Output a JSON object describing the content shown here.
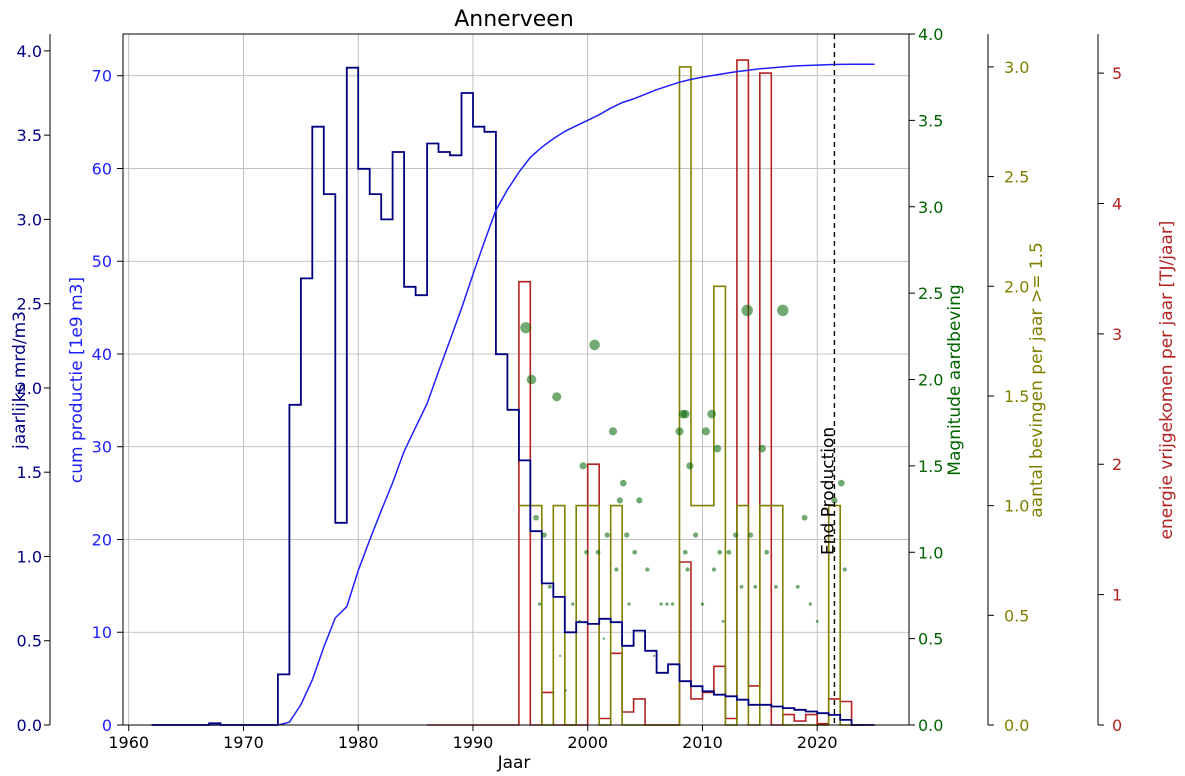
{
  "chart_data": {
    "type": "line",
    "title": "Annerveen",
    "xlabel": "Jaar",
    "xlim": [
      1959.5,
      2028
    ],
    "x_ticks": [
      "1960",
      "1970",
      "1980",
      "1990",
      "2000",
      "2010",
      "2020"
    ],
    "grid": true,
    "colors": {
      "annual": "#000080",
      "cumulative": "#1f1fff",
      "magnitude": "#006400",
      "counts": "#808000",
      "energy": "#b22222"
    },
    "axes": {
      "annual": {
        "label": "jaarlijks mrd/m3",
        "ylim": [
          0,
          4.1
        ],
        "ticks": [
          "0.0",
          "0.5",
          "1.0",
          "1.5",
          "2.0",
          "2.5",
          "3.0",
          "3.5",
          "4.0"
        ]
      },
      "cumulative": {
        "label": "cum productie [1e9 m3]",
        "ylim": [
          0,
          74.5
        ],
        "ticks": [
          "0",
          "10",
          "20",
          "30",
          "40",
          "50",
          "60",
          "70"
        ]
      },
      "magnitude": {
        "label": "Magnitude aardbeving",
        "ylim": [
          0,
          4.0
        ],
        "ticks": [
          "0.0",
          "0.5",
          "1.0",
          "1.5",
          "2.0",
          "2.5",
          "3.0",
          "3.5",
          "4.0"
        ]
      },
      "counts": {
        "label": "aantal bevingen per jaar >= 1.5",
        "ylim": [
          0,
          3.15
        ],
        "ticks": [
          "0.0",
          "0.5",
          "1.0",
          "1.5",
          "2.0",
          "2.5",
          "3.0"
        ]
      },
      "energy": {
        "label": "energie vrijgekomen per jaar [TJ/jaar]",
        "ylim": [
          0,
          5.3
        ],
        "ticks": [
          "0",
          "1",
          "2",
          "3",
          "4",
          "5"
        ]
      }
    },
    "annotation": {
      "text": "End Production",
      "x": 2021.5
    },
    "annual_production": {
      "name": "jaarlijks",
      "x": [
        1962,
        1967,
        1968,
        1973,
        1974,
        1975,
        1976,
        1977,
        1978,
        1979,
        1980,
        1981,
        1982,
        1983,
        1984,
        1985,
        1986,
        1987,
        1988,
        1989,
        1990,
        1991,
        1992,
        1993,
        1994,
        1995,
        1996,
        1997,
        1998,
        1999,
        2000,
        2001,
        2002,
        2003,
        2004,
        2005,
        2006,
        2007,
        2008,
        2009,
        2010,
        2011,
        2012,
        2013,
        2014,
        2015,
        2016,
        2017,
        2018,
        2019,
        2020,
        2021,
        2022,
        2023,
        2024
      ],
      "values": [
        0.0,
        0.01,
        0.0,
        0.3,
        1.9,
        2.65,
        3.55,
        3.15,
        1.2,
        3.9,
        3.3,
        3.15,
        3.0,
        3.4,
        2.6,
        2.55,
        3.45,
        3.4,
        3.38,
        3.75,
        3.55,
        3.52,
        2.2,
        1.87,
        1.57,
        1.15,
        0.84,
        0.76,
        0.55,
        0.61,
        0.6,
        0.63,
        0.61,
        0.47,
        0.56,
        0.44,
        0.31,
        0.36,
        0.26,
        0.23,
        0.2,
        0.18,
        0.17,
        0.15,
        0.12,
        0.12,
        0.11,
        0.1,
        0.09,
        0.08,
        0.07,
        0.06,
        0.03,
        0.0,
        0.0
      ]
    },
    "cumulative_production": {
      "name": "cum productie",
      "x": [
        1962,
        1973,
        1974,
        1975,
        1976,
        1977,
        1978,
        1979,
        1980,
        1981,
        1982,
        1983,
        1984,
        1985,
        1986,
        1987,
        1988,
        1989,
        1990,
        1991,
        1992,
        1993,
        1994,
        1995,
        1996,
        1997,
        1998,
        1999,
        2000,
        2001,
        2002,
        2003,
        2004,
        2005,
        2006,
        2007,
        2008,
        2009,
        2010,
        2011,
        2012,
        2013,
        2014,
        2015,
        2016,
        2017,
        2018,
        2019,
        2020,
        2021,
        2022,
        2023,
        2024,
        2025
      ],
      "values": [
        0,
        0,
        0.3,
        2.2,
        4.85,
        8.4,
        11.55,
        12.75,
        16.65,
        19.95,
        23.1,
        26.1,
        29.5,
        32.1,
        34.65,
        38.1,
        41.5,
        44.9,
        48.6,
        52.1,
        55.5,
        57.7,
        59.6,
        61.2,
        62.3,
        63.2,
        64.0,
        64.6,
        65.2,
        65.8,
        66.5,
        67.1,
        67.5,
        68.0,
        68.5,
        68.9,
        69.3,
        69.6,
        69.85,
        70.05,
        70.25,
        70.45,
        70.6,
        70.75,
        70.85,
        70.95,
        71.05,
        71.1,
        71.15,
        71.2,
        71.22,
        71.23,
        71.24,
        71.24
      ]
    },
    "quake_counts": {
      "name": "aantal bevingen per jaar >= 1.5",
      "x": [
        1994,
        1995,
        1996,
        1997,
        1998,
        1999,
        2000,
        2001,
        2002,
        2003,
        2004,
        2005,
        2006,
        2007,
        2008,
        2009,
        2010,
        2011,
        2012,
        2013,
        2014,
        2015,
        2016,
        2017,
        2018,
        2019,
        2020,
        2021,
        2022
      ],
      "values": [
        1.0,
        1.0,
        0.0,
        1.0,
        0.0,
        1.0,
        1.0,
        0.0,
        1.0,
        0.0,
        0.0,
        0.0,
        0.0,
        0.0,
        3.0,
        1.0,
        1.0,
        2.0,
        0.0,
        1.0,
        0.0,
        1.0,
        1.0,
        0.0,
        0.0,
        0.0,
        0.0,
        1.0,
        0.0
      ]
    },
    "quake_energy": {
      "name": "energie vrijgekomen per jaar",
      "x": [
        1986,
        1994,
        1995,
        1996,
        1997,
        1998,
        1999,
        2000,
        2001,
        2002,
        2003,
        2004,
        2005,
        2006,
        2007,
        2008,
        2009,
        2010,
        2011,
        2012,
        2013,
        2014,
        2015,
        2016,
        2017,
        2018,
        2019,
        2020,
        2021,
        2022,
        2023
      ],
      "values": [
        0.0,
        3.4,
        0.0,
        0.25,
        0.0,
        0.0,
        0.0,
        2.0,
        0.05,
        0.55,
        0.1,
        0.2,
        0.0,
        0.0,
        0.0,
        1.25,
        0.2,
        0.25,
        0.45,
        0.05,
        5.1,
        0.3,
        5.0,
        0.0,
        0.08,
        0.03,
        0.08,
        0.01,
        0.2,
        0.18,
        0.0
      ]
    },
    "quake_magnitudes": {
      "name": "Magnitude aardbeving",
      "points": [
        [
          1994.6,
          2.3
        ],
        [
          1995.1,
          2.0
        ],
        [
          1995.5,
          1.2
        ],
        [
          1995.8,
          0.7
        ],
        [
          1996.2,
          1.1
        ],
        [
          1996.7,
          0.8
        ],
        [
          1997.3,
          1.9
        ],
        [
          1997.6,
          0.4
        ],
        [
          1998.1,
          0.2
        ],
        [
          1998.7,
          0.7
        ],
        [
          1999.3,
          0.6
        ],
        [
          1999.6,
          1.5
        ],
        [
          1999.9,
          1.0
        ],
        [
          2000.6,
          2.2
        ],
        [
          2000.9,
          1.0
        ],
        [
          2001.4,
          0.5
        ],
        [
          2001.7,
          1.1
        ],
        [
          2002.2,
          1.7
        ],
        [
          2002.5,
          0.9
        ],
        [
          2002.8,
          1.3
        ],
        [
          2003.1,
          1.4
        ],
        [
          2003.4,
          1.1
        ],
        [
          2003.6,
          0.7
        ],
        [
          2004.1,
          1.0
        ],
        [
          2004.5,
          1.3
        ],
        [
          2005.2,
          0.9
        ],
        [
          2005.8,
          0.4
        ],
        [
          2006.4,
          0.7
        ],
        [
          2006.9,
          0.7
        ],
        [
          2007.4,
          0.7
        ],
        [
          2008.0,
          1.7
        ],
        [
          2008.3,
          1.8
        ],
        [
          2008.5,
          1.8
        ],
        [
          2008.9,
          1.5
        ],
        [
          2008.5,
          1.0
        ],
        [
          2008.7,
          0.9
        ],
        [
          2009.4,
          1.1
        ],
        [
          2010.0,
          0.7
        ],
        [
          2010.3,
          1.7
        ],
        [
          2010.8,
          1.8
        ],
        [
          2011.0,
          0.9
        ],
        [
          2011.3,
          1.6
        ],
        [
          2011.5,
          1.0
        ],
        [
          2011.8,
          0.6
        ],
        [
          2012.3,
          1.0
        ],
        [
          2012.9,
          1.1
        ],
        [
          2013.4,
          0.8
        ],
        [
          2013.9,
          2.4
        ],
        [
          2014.2,
          1.1
        ],
        [
          2014.6,
          0.8
        ],
        [
          2015.2,
          1.6
        ],
        [
          2015.6,
          1.0
        ],
        [
          2016.4,
          0.8
        ],
        [
          2017.0,
          2.4
        ],
        [
          2018.3,
          0.8
        ],
        [
          2018.9,
          1.2
        ],
        [
          2019.4,
          0.7
        ],
        [
          2020.0,
          0.6
        ],
        [
          2021.5,
          1.3
        ],
        [
          2022.1,
          1.4
        ],
        [
          2022.4,
          0.9
        ]
      ]
    }
  }
}
